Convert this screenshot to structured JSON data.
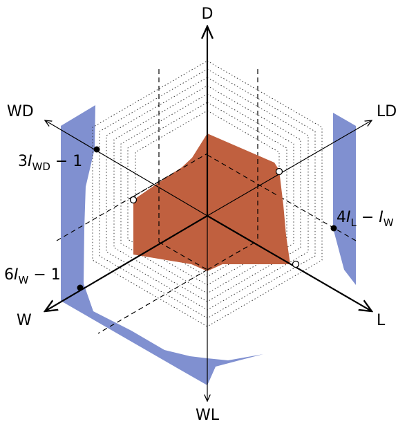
{
  "axes": {
    "d": "D",
    "ld": "LD",
    "l": "L",
    "wl": "WL",
    "w": "W",
    "wd": "WD"
  },
  "annotations": {
    "wd": {
      "coef": "3",
      "var": "I",
      "sub": "WD",
      "rest": " − 1"
    },
    "w": {
      "coef": "6",
      "var": "I",
      "sub": "W",
      "rest": " − 1"
    },
    "l": {
      "coef": "4",
      "var": "I",
      "sub": "L",
      "rest": " − ",
      "var2": "I",
      "sub2": "W"
    }
  },
  "colors": {
    "region_fill": "#c0603f",
    "boundary_fill": "#8090d0",
    "axis": "#000000"
  }
}
